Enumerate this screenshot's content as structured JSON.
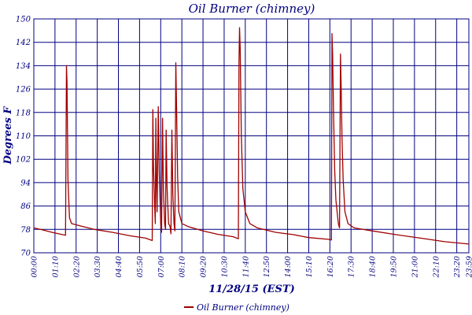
{
  "colors": {
    "grid": "#000080",
    "series": "#a00000",
    "text": "#000080"
  },
  "chart_data": {
    "type": "line",
    "title": "Oil Burner (chimney)",
    "xlabel": "11/28/15 (EST)",
    "ylabel": "Degrees F",
    "ylim": [
      70,
      150
    ],
    "yticks": [
      70,
      78,
      86,
      94,
      102,
      110,
      118,
      126,
      134,
      142,
      150
    ],
    "xlim": [
      0,
      1440
    ],
    "xticks": [
      {
        "t": 0,
        "label": "00:00"
      },
      {
        "t": 70,
        "label": "01:10"
      },
      {
        "t": 140,
        "label": "02:20"
      },
      {
        "t": 210,
        "label": "03:30"
      },
      {
        "t": 280,
        "label": "04:40"
      },
      {
        "t": 350,
        "label": "05:50"
      },
      {
        "t": 420,
        "label": "07:00"
      },
      {
        "t": 490,
        "label": "08:10"
      },
      {
        "t": 560,
        "label": "09:20"
      },
      {
        "t": 630,
        "label": "10:30"
      },
      {
        "t": 700,
        "label": "11:40"
      },
      {
        "t": 770,
        "label": "12:50"
      },
      {
        "t": 840,
        "label": "14:00"
      },
      {
        "t": 910,
        "label": "15:10"
      },
      {
        "t": 980,
        "label": "16:20"
      },
      {
        "t": 1050,
        "label": "17:30"
      },
      {
        "t": 1120,
        "label": "18:40"
      },
      {
        "t": 1190,
        "label": "19:50"
      },
      {
        "t": 1260,
        "label": "21:00"
      },
      {
        "t": 1330,
        "label": "22:10"
      },
      {
        "t": 1400,
        "label": "23:20"
      },
      {
        "t": 1440,
        "label": "23:59"
      }
    ],
    "grid": true,
    "legend_position": "bottom",
    "series": [
      {
        "name": "Oil Burner (chimney)",
        "points": [
          [
            0,
            78.5
          ],
          [
            30,
            77.8
          ],
          [
            60,
            77.0
          ],
          [
            105,
            76.0
          ],
          [
            108,
            134
          ],
          [
            110,
            128
          ],
          [
            113,
            95
          ],
          [
            118,
            82
          ],
          [
            125,
            80
          ],
          [
            150,
            79.3
          ],
          [
            200,
            78.0
          ],
          [
            260,
            77.0
          ],
          [
            320,
            75.8
          ],
          [
            370,
            75.0
          ],
          [
            392,
            74.2
          ],
          [
            394,
            119
          ],
          [
            396,
            100
          ],
          [
            400,
            86
          ],
          [
            402,
            80
          ],
          [
            404,
            116
          ],
          [
            406,
            95
          ],
          [
            408,
            84
          ],
          [
            412,
            120
          ],
          [
            415,
            98
          ],
          [
            420,
            80
          ],
          [
            423,
            77
          ],
          [
            426,
            116
          ],
          [
            429,
            92
          ],
          [
            433,
            80
          ],
          [
            436,
            78
          ],
          [
            438,
            112
          ],
          [
            441,
            92
          ],
          [
            446,
            80
          ],
          [
            451,
            79
          ],
          [
            454,
            76.5
          ],
          [
            457,
            112
          ],
          [
            460,
            90
          ],
          [
            464,
            80
          ],
          [
            467,
            77.5
          ],
          [
            470,
            135
          ],
          [
            472,
            122
          ],
          [
            476,
            96
          ],
          [
            480,
            84
          ],
          [
            490,
            80
          ],
          [
            510,
            79.0
          ],
          [
            560,
            77.5
          ],
          [
            610,
            76.3
          ],
          [
            660,
            75.5
          ],
          [
            677,
            74.8
          ],
          [
            679,
            135
          ],
          [
            681,
            147
          ],
          [
            683,
            140
          ],
          [
            687,
            110
          ],
          [
            692,
            92
          ],
          [
            700,
            84
          ],
          [
            715,
            80
          ],
          [
            740,
            78.5
          ],
          [
            800,
            77.0
          ],
          [
            860,
            76.2
          ],
          [
            910,
            75.2
          ],
          [
            975,
            74.6
          ],
          [
            985,
            74.4
          ],
          [
            987,
            145
          ],
          [
            989,
            138
          ],
          [
            992,
            118
          ],
          [
            996,
            98
          ],
          [
            1000,
            88
          ],
          [
            1008,
            80
          ],
          [
            1012,
            78.5
          ],
          [
            1015,
            138
          ],
          [
            1017,
            128
          ],
          [
            1020,
            110
          ],
          [
            1024,
            95
          ],
          [
            1030,
            84
          ],
          [
            1040,
            80
          ],
          [
            1060,
            78.5
          ],
          [
            1120,
            77.5
          ],
          [
            1200,
            76.2
          ],
          [
            1280,
            75.0
          ],
          [
            1360,
            73.8
          ],
          [
            1440,
            73.0
          ]
        ]
      }
    ]
  }
}
